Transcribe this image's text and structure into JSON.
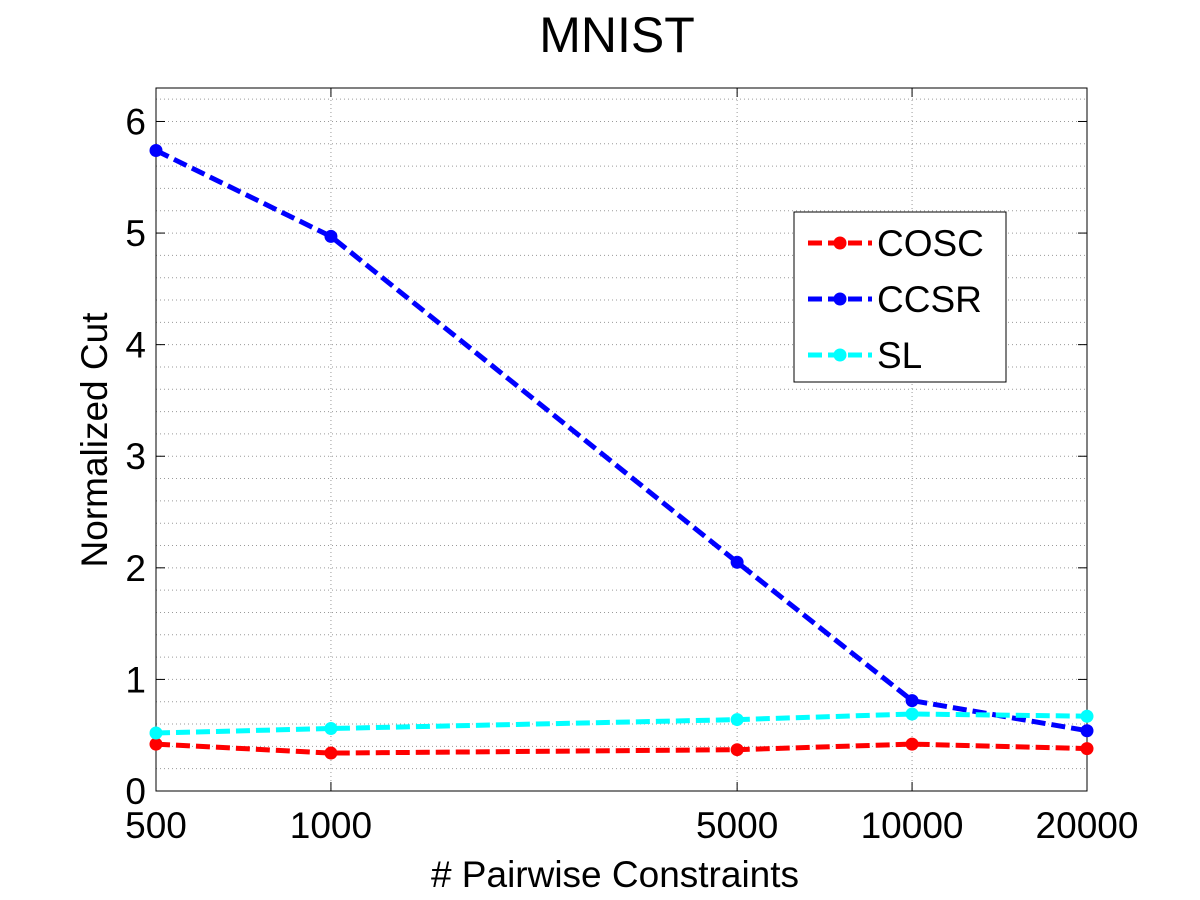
{
  "chart_data": {
    "type": "line",
    "title": "MNIST",
    "xlabel": "# Pairwise Constraints",
    "ylabel": "Normalized Cut",
    "x": [
      500,
      1000,
      5000,
      10000,
      20000
    ],
    "x_scale": "log",
    "xlim": [
      500,
      20000
    ],
    "ylim": [
      0,
      6.3
    ],
    "xticks": [
      500,
      1000,
      5000,
      10000,
      20000
    ],
    "yticks": [
      0,
      1,
      2,
      3,
      4,
      5,
      6
    ],
    "grid": true,
    "legend_position": "top-right",
    "series": [
      {
        "name": "COSC",
        "color": "#ff0000",
        "values": [
          0.42,
          0.34,
          0.37,
          0.42,
          0.38
        ]
      },
      {
        "name": "CCSR",
        "color": "#0000ff",
        "values": [
          5.74,
          4.97,
          2.05,
          0.81,
          0.54
        ]
      },
      {
        "name": "SL",
        "color": "#00ffff",
        "values": [
          0.52,
          0.56,
          0.64,
          0.69,
          0.67
        ]
      }
    ]
  }
}
